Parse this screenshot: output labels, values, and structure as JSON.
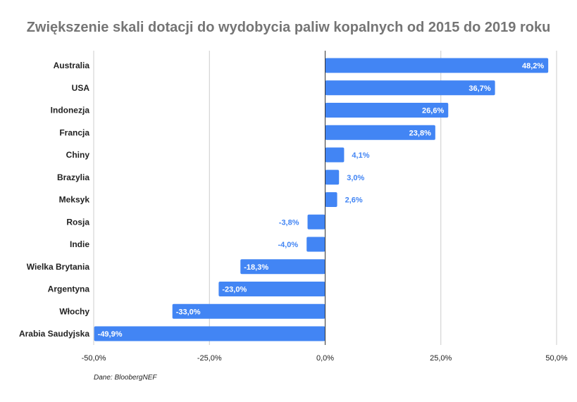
{
  "chart_data": {
    "type": "bar",
    "orientation": "horizontal",
    "title": "Zwiększenie skali dotacji do wydobycia paliw kopalnych od 2015 do 2019 roku",
    "xlabel": "",
    "ylabel": "",
    "categories": [
      "Australia",
      "USA",
      "Indonezja",
      "Francja",
      "Chiny",
      "Brazylia",
      "Meksyk",
      "Rosja",
      "Indie",
      "Wielka Brytania",
      "Argentyna",
      "Włochy",
      "Arabia Saudyjska"
    ],
    "values": [
      48.2,
      36.7,
      26.6,
      23.8,
      4.1,
      3.0,
      2.6,
      -3.8,
      -4.0,
      -18.3,
      -23.0,
      -33.0,
      -49.9
    ],
    "data_labels": [
      "48,2%",
      "36,7%",
      "26,6%",
      "23,8%",
      "4,1%",
      "3,0%",
      "2,6%",
      "-3,8%",
      "-4,0%",
      "-18,3%",
      "-23,0%",
      "-33,0%",
      "-49,9%"
    ],
    "xlim": [
      -50,
      50
    ],
    "x_ticks": [
      -50,
      -25,
      0,
      25,
      50
    ],
    "x_tick_labels": [
      "-50,0%",
      "-25,0%",
      "0,0%",
      "25,0%",
      "50,0%"
    ],
    "grid": true,
    "legend": "none",
    "bar_color": "#4285f4",
    "label_color_outside": "#4285f4",
    "label_color_inside": "#ffffff",
    "source": "Dane: BloobergNEF"
  }
}
